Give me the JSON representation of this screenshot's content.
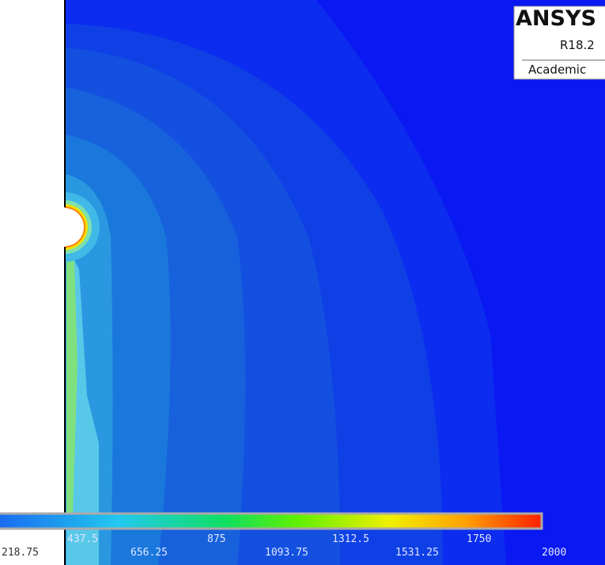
{
  "logo": {
    "brand": "ANSYS",
    "version": "R18.2",
    "edition": "Academic"
  },
  "legend": {
    "upper_labels": [
      "437.5",
      "875",
      "1312.5",
      "1750"
    ],
    "lower_labels": [
      "218.75",
      "656.25",
      "1093.75",
      "1531.25",
      "2000"
    ]
  }
}
